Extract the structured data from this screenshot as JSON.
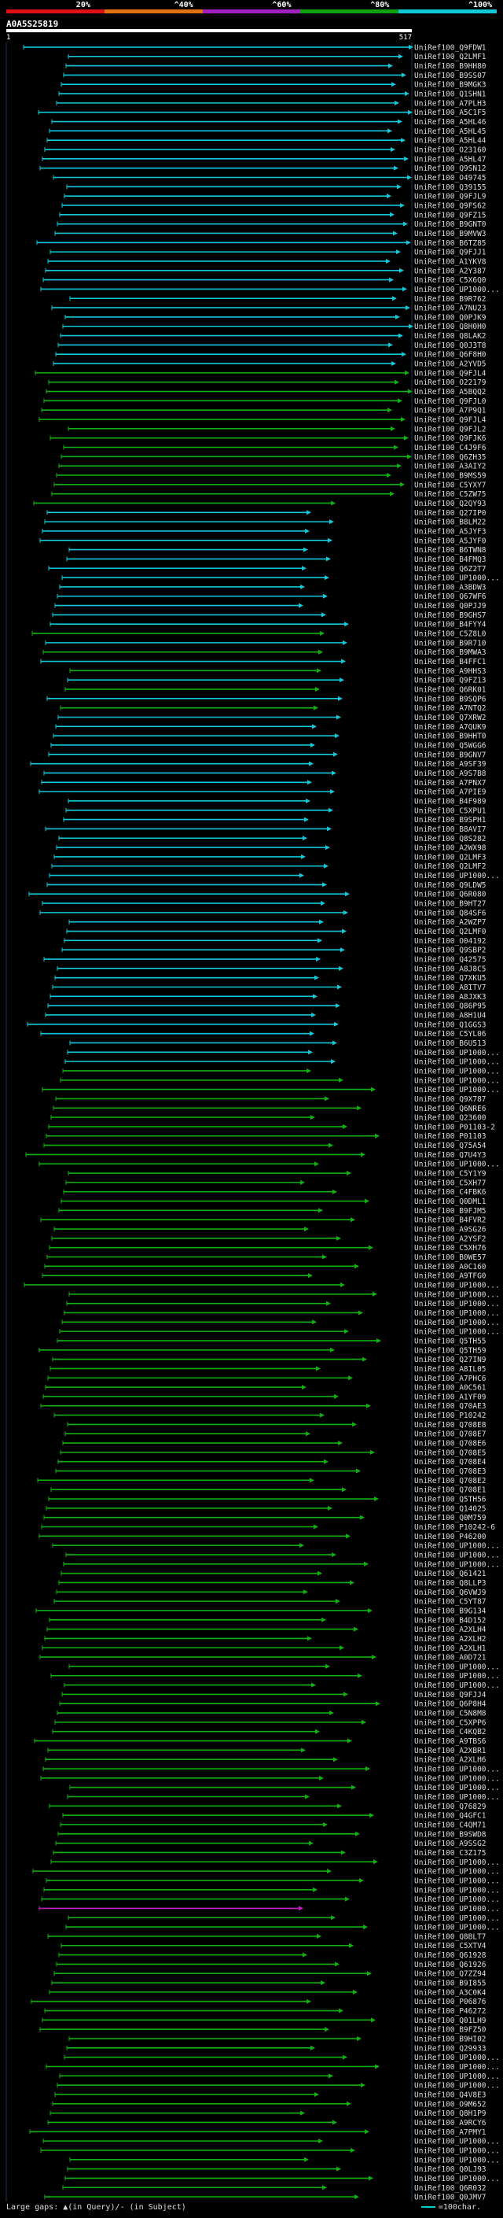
{
  "legend": {
    "segments": [
      {
        "label": "20%",
        "color": "#e01010"
      },
      {
        "label": "^40%",
        "color": "#e07010"
      },
      {
        "label": "^60%",
        "color": "#a020c0"
      },
      {
        "label": "^80%",
        "color": "#10a010"
      },
      {
        "label": "^100%",
        "color": "#10c8d8"
      }
    ]
  },
  "query": {
    "id": "A0A5S25819",
    "start": "1",
    "end": "517"
  },
  "footer": {
    "left": "Large gaps: ▲(in Query)/- (in Subject)",
    "right": "=100char."
  },
  "hits": [
    "UniRef100_Q9FDW1",
    "UniRef100_Q2LMF1",
    "UniRef100_B9HH80",
    "UniRef100_B9SS07",
    "UniRef100_B9MGK3",
    "UniRef100_Q1SHN1",
    "UniRef100_A7PLH3",
    "UniRef100_A5C1F5",
    "UniRef100_A5HL46",
    "UniRef100_A5HL45",
    "UniRef100_A5HL44",
    "UniRef100_O23160",
    "UniRef100_A5HL47",
    "UniRef100_Q9SN12",
    "UniRef100_O49745",
    "UniRef100_Q39155",
    "UniRef100_Q9FJL9",
    "UniRef100_Q9FS62",
    "UniRef100_Q9FZ15",
    "UniRef100_B9GNT0",
    "UniRef100_B9MVW3",
    "UniRef100_B6TZ85",
    "UniRef100_Q9FJJ1",
    "UniRef100_A1YKV8",
    "UniRef100_A2Y387",
    "UniRef100_C5X6Q0",
    "UniRef100_UP1000...",
    "UniRef100_B9R762",
    "UniRef100_A7NU23",
    "UniRef100_Q0PJK9",
    "UniRef100_Q8H0H0",
    "UniRef100_Q8LAK2",
    "UniRef100_Q0J3T8",
    "UniRef100_Q6F8H0",
    "UniRef100_A2YVD5",
    "UniRef100_Q9FJL4",
    "UniRef100_O22179",
    "UniRef100_A5BQQ2",
    "UniRef100_Q9FJL0",
    "UniRef100_A7P9Q1",
    "UniRef100_Q9FJL4",
    "UniRef100_Q9FJL2",
    "UniRef100_Q9FJK6",
    "UniRef100_C4J9F6",
    "UniRef100_Q6ZH35",
    "UniRef100_A3AIY2",
    "UniRef100_B9MS59",
    "UniRef100_C5YXY7",
    "UniRef100_C5ZW75",
    "UniRef100_Q2QY93",
    "UniRef100_Q27IP0",
    "UniRef100_B8LM22",
    "UniRef100_A5JYF3",
    "UniRef100_A5JYF0",
    "UniRef100_B6TWN8",
    "UniRef100_B4FMQ3",
    "UniRef100_Q6Z2T7",
    "UniRef100_UP1000...",
    "UniRef100_A3BDW3",
    "UniRef100_Q67WF6",
    "UniRef100_Q0PJJ9",
    "UniRef100_B9GHS7",
    "UniRef100_B4FYY4",
    "UniRef100_C5Z8L0",
    "UniRef100_B9R710",
    "UniRef100_B9MWA3",
    "UniRef100_B4FFC1",
    "UniRef100_A9HHS3",
    "UniRef100_Q9FZ13",
    "UniRef100_Q6RK01",
    "UniRef100_B9SQP6",
    "UniRef100_A7NTQ2",
    "UniRef100_Q7XRW2",
    "UniRef100_A7QUK9",
    "UniRef100_B9HHT0",
    "UniRef100_Q5WGG6",
    "UniRef100_B9GNV7",
    "UniRef100_A9SF39",
    "UniRef100_A9S7B8",
    "UniRef100_A7PNX7",
    "UniRef100_A7PIE9",
    "UniRef100_B4F989",
    "UniRef100_C5XPU1",
    "UniRef100_B9SPH1",
    "UniRef100_B8AVI7",
    "UniRef100_Q8S282",
    "UniRef100_A2WX98",
    "UniRef100_Q2LMF3",
    "UniRef100_Q2LMF2",
    "UniRef100_UP1000...",
    "UniRef100_Q9LDW5",
    "UniRef100_Q6R080",
    "UniRef100_B9HT27",
    "UniRef100_Q84SF6",
    "UniRef100_A2WZP7",
    "UniRef100_Q2LMF0",
    "UniRef100_O04192",
    "UniRef100_Q9SBP2",
    "UniRef100_Q42575",
    "UniRef100_A8J8C5",
    "UniRef100_Q7XKU5",
    "UniRef100_A8ITV7",
    "UniRef100_A8JXK3",
    "UniRef100_Q86P95",
    "UniRef100_A8H1U4",
    "UniRef100_Q1GGS3",
    "UniRef100_C5YL06",
    "UniRef100_B6U513",
    "UniRef100_UP1000...",
    "UniRef100_UP1000...",
    "UniRef100_UP1000...",
    "UniRef100_UP1000...",
    "UniRef100_UP1000...",
    "UniRef100_Q9X787",
    "UniRef100_Q6NRE6",
    "UniRef100_Q23600",
    "UniRef100_P01103-2",
    "UniRef100_P01103",
    "UniRef100_Q75A54",
    "UniRef100_Q7U4Y3",
    "UniRef100_UP1000...",
    "UniRef100_C5Y1Y9",
    "UniRef100_C5XH77",
    "UniRef100_C4FBK6",
    "UniRef100_Q0DML1",
    "UniRef100_B9FJM5",
    "UniRef100_B4FVR2",
    "UniRef100_A9SG26",
    "UniRef100_A2YSF2",
    "UniRef100_C5XH76",
    "UniRef100_B0WE57",
    "UniRef100_A0C160",
    "UniRef100_A9TFG0",
    "UniRef100_UP1000...",
    "UniRef100_UP1000...",
    "UniRef100_UP1000...",
    "UniRef100_UP1000...",
    "UniRef100_UP1000...",
    "UniRef100_UP1000...",
    "UniRef100_Q5TH55",
    "UniRef100_Q5TH59",
    "UniRef100_Q27IN9",
    "UniRef100_A8IL05",
    "UniRef100_A7PHC6",
    "UniRef100_A0C561",
    "UniRef100_A1YF09",
    "UniRef100_Q70AE3",
    "UniRef100_P10242",
    "UniRef100_Q708E8",
    "UniRef100_Q708E7",
    "UniRef100_Q708E6",
    "UniRef100_Q708E5",
    "UniRef100_Q708E4",
    "UniRef100_Q708E3",
    "UniRef100_Q708E2",
    "UniRef100_Q708E1",
    "UniRef100_Q5TH56",
    "UniRef100_Q14025",
    "UniRef100_Q0M759",
    "UniRef100_P10242-6",
    "UniRef100_P46200",
    "UniRef100_UP1000...",
    "UniRef100_UP1000...",
    "UniRef100_UP1000...",
    "UniRef100_Q61421",
    "UniRef100_Q8LLP3",
    "UniRef100_Q6VWJ9",
    "UniRef100_C5YT87",
    "UniRef100_B9G134",
    "UniRef100_B4D152",
    "UniRef100_A2XLH4",
    "UniRef100_A2XLH2",
    "UniRef100_A2XLH1",
    "UniRef100_A0D721",
    "UniRef100_UP1000...",
    "UniRef100_UP1000...",
    "UniRef100_UP1000...",
    "UniRef100_Q9FJJ4",
    "UniRef100_Q6P8H4",
    "UniRef100_C5N8M8",
    "UniRef100_C5XPP6",
    "UniRef100_C4KQB2",
    "UniRef100_A9TBS6",
    "UniRef100_A2XBR1",
    "UniRef100_A2XLH6",
    "UniRef100_UP1000...",
    "UniRef100_UP1000...",
    "UniRef100_UP1000...",
    "UniRef100_UP1000...",
    "UniRef100_Q76829",
    "UniRef100_Q4GFC1",
    "UniRef100_C4QM71",
    "UniRef100_B9SWD8",
    "UniRef100_A9SSG2",
    "UniRef100_C3Z175",
    "UniRef100_UP1000...",
    "UniRef100_UP1000...",
    "UniRef100_UP1000...",
    "UniRef100_UP1000...",
    "UniRef100_UP1000...",
    "UniRef100_UP1000...",
    "UniRef100_UP1000...",
    "UniRef100_UP1000...",
    "UniRef100_Q8BLT7",
    "UniRef100_C5XTV4",
    "UniRef100_Q61928",
    "UniRef100_Q61926",
    "UniRef100_Q7ZZ94",
    "UniRef100_B9I855",
    "UniRef100_A3C0K4",
    "UniRef100_P06876",
    "UniRef100_P46272",
    "UniRef100_Q01LH9",
    "UniRef100_B9FZ50",
    "UniRef100_B9HI02",
    "UniRef100_Q29933",
    "UniRef100_UP1000...",
    "UniRef100_UP1000...",
    "UniRef100_UP1000...",
    "UniRef100_UP1000...",
    "UniRef100_Q4V8E3",
    "UniRef100_O9M652",
    "UniRef100_Q8H1P9",
    "UniRef100_A9RCY6",
    "UniRef100_A7PMY1",
    "UniRef100_UP1000...",
    "UniRef100_UP1000...",
    "UniRef100_UP1000...",
    "UniRef100_Q0LJ93",
    "UniRef100_UP1000...",
    "UniRef100_Q6R032",
    "UniRef100_Q0JMV7"
  ]
}
